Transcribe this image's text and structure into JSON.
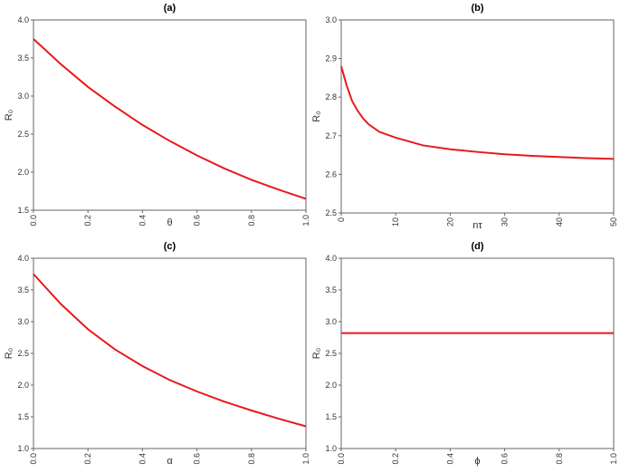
{
  "chart_data": [
    {
      "type": "line",
      "title": "(a)",
      "x_label": "θ",
      "y_label": "R₀",
      "x": [
        0,
        0.1,
        0.2,
        0.3,
        0.4,
        0.5,
        0.6,
        0.7,
        0.8,
        0.9,
        1.0
      ],
      "values": [
        3.75,
        3.42,
        3.12,
        2.86,
        2.62,
        2.41,
        2.22,
        2.05,
        1.9,
        1.77,
        1.65
      ],
      "color": "#e8191c",
      "xlim": [
        0,
        1
      ],
      "ylim": [
        1.5,
        4.0
      ],
      "xticks": [
        {
          "value": 0,
          "label": "0.0"
        },
        {
          "value": 0.2,
          "label": "0.2"
        },
        {
          "value": 0.4,
          "label": "0.4"
        },
        {
          "value": 0.6,
          "label": "0.6"
        },
        {
          "value": 0.8,
          "label": "0.8"
        },
        {
          "value": 1,
          "label": "1.0"
        }
      ],
      "yticks": [
        {
          "value": 1.5,
          "label": "1.5"
        },
        {
          "value": 2,
          "label": "2.0"
        },
        {
          "value": 2.5,
          "label": "2.5"
        },
        {
          "value": 3,
          "label": "3.0"
        },
        {
          "value": 3.5,
          "label": "3.5"
        },
        {
          "value": 4,
          "label": "4.0"
        }
      ]
    },
    {
      "type": "line",
      "title": "(b)",
      "x_label": "nτ",
      "y_label": "R₀",
      "x": [
        0,
        1,
        2,
        3,
        4,
        5,
        7,
        10,
        15,
        20,
        25,
        30,
        35,
        40,
        45,
        50
      ],
      "values": [
        2.88,
        2.83,
        2.79,
        2.765,
        2.745,
        2.73,
        2.71,
        2.695,
        2.675,
        2.665,
        2.658,
        2.652,
        2.648,
        2.645,
        2.642,
        2.64
      ],
      "color": "#e8191c",
      "xlim": [
        0,
        50
      ],
      "ylim": [
        2.5,
        3.0
      ],
      "xticks": [
        0,
        10,
        20,
        30,
        40,
        50
      ],
      "yticks": [
        {
          "value": 2.5,
          "label": "2.5"
        },
        {
          "value": 2.6,
          "label": "2.6"
        },
        {
          "value": 2.7,
          "label": "2.7"
        },
        {
          "value": 2.8,
          "label": "2.8"
        },
        {
          "value": 2.9,
          "label": "2.9"
        },
        {
          "value": 3,
          "label": "3.0"
        }
      ]
    },
    {
      "type": "line",
      "title": "(c)",
      "x_label": "α",
      "y_label": "R₀",
      "x": [
        0,
        0.1,
        0.2,
        0.3,
        0.4,
        0.5,
        0.6,
        0.7,
        0.8,
        0.9,
        1.0
      ],
      "values": [
        3.75,
        3.28,
        2.88,
        2.56,
        2.3,
        2.08,
        1.9,
        1.74,
        1.6,
        1.47,
        1.35
      ],
      "color": "#e8191c",
      "xlim": [
        0,
        1
      ],
      "ylim": [
        1.0,
        4.0
      ],
      "xticks": [
        {
          "value": 0,
          "label": "0.0"
        },
        {
          "value": 0.2,
          "label": "0.2"
        },
        {
          "value": 0.4,
          "label": "0.4"
        },
        {
          "value": 0.6,
          "label": "0.6"
        },
        {
          "value": 0.8,
          "label": "0.8"
        },
        {
          "value": 1,
          "label": "1.0"
        }
      ],
      "yticks": [
        {
          "value": 1,
          "label": "1.0"
        },
        {
          "value": 1.5,
          "label": "1.5"
        },
        {
          "value": 2,
          "label": "2.0"
        },
        {
          "value": 2.5,
          "label": "2.5"
        },
        {
          "value": 3,
          "label": "3.0"
        },
        {
          "value": 3.5,
          "label": "3.5"
        },
        {
          "value": 4,
          "label": "4.0"
        }
      ]
    },
    {
      "type": "line",
      "title": "(d)",
      "x_label": "ϕ",
      "y_label": "R₀",
      "x": [
        0,
        1.0
      ],
      "values": [
        2.82,
        2.82
      ],
      "color": "#e8191c",
      "xlim": [
        0,
        1
      ],
      "ylim": [
        1.0,
        4.0
      ],
      "xticks": [
        {
          "value": 0,
          "label": "0.0"
        },
        {
          "value": 0.2,
          "label": "0.2"
        },
        {
          "value": 0.4,
          "label": "0.4"
        },
        {
          "value": 0.6,
          "label": "0.6"
        },
        {
          "value": 0.8,
          "label": "0.8"
        },
        {
          "value": 1,
          "label": "1.0"
        }
      ],
      "yticks": [
        {
          "value": 1,
          "label": "1.0"
        },
        {
          "value": 1.5,
          "label": "1.5"
        },
        {
          "value": 2,
          "label": "2.0"
        },
        {
          "value": 2.5,
          "label": "2.5"
        },
        {
          "value": 3,
          "label": "3.0"
        },
        {
          "value": 3.5,
          "label": "3.5"
        },
        {
          "value": 4,
          "label": "4.0"
        }
      ]
    }
  ]
}
